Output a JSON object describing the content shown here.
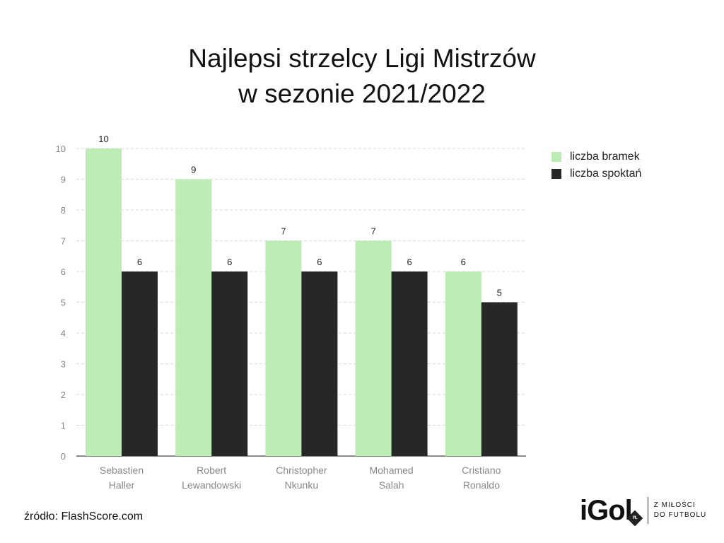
{
  "title_lines": [
    "Najlepsi strzelcy Ligi Mistrzów",
    "w sezonie 2021/2022"
  ],
  "source": "źródło: FlashScore.com",
  "brand": {
    "logo": "iGol",
    "badge": "PL",
    "tagline": [
      "Z MIŁOŚCI",
      "DO FUTBOLU"
    ]
  },
  "chart_data": {
    "type": "bar",
    "title": "Najlepsi strzelcy Ligi Mistrzów w sezonie 2021/2022",
    "categories": [
      [
        "Sebastien",
        "Haller"
      ],
      [
        "Robert",
        "Lewandowski"
      ],
      [
        "Christopher",
        "Nkunku"
      ],
      [
        "Mohamed",
        "Salah"
      ],
      [
        "Cristiano",
        "Ronaldo"
      ]
    ],
    "series": [
      {
        "name": "liczba bramek",
        "values": [
          10,
          9,
          7,
          7,
          6
        ],
        "color": "#bdedb5"
      },
      {
        "name": "liczba spoktań",
        "values": [
          6,
          6,
          6,
          6,
          5
        ],
        "color": "#252825"
      }
    ],
    "ylim": [
      0,
      10
    ],
    "yticks": [
      0,
      1,
      2,
      3,
      4,
      5,
      6,
      7,
      8,
      9,
      10
    ],
    "grid": true,
    "legend_position": "right",
    "data_labels": true
  }
}
